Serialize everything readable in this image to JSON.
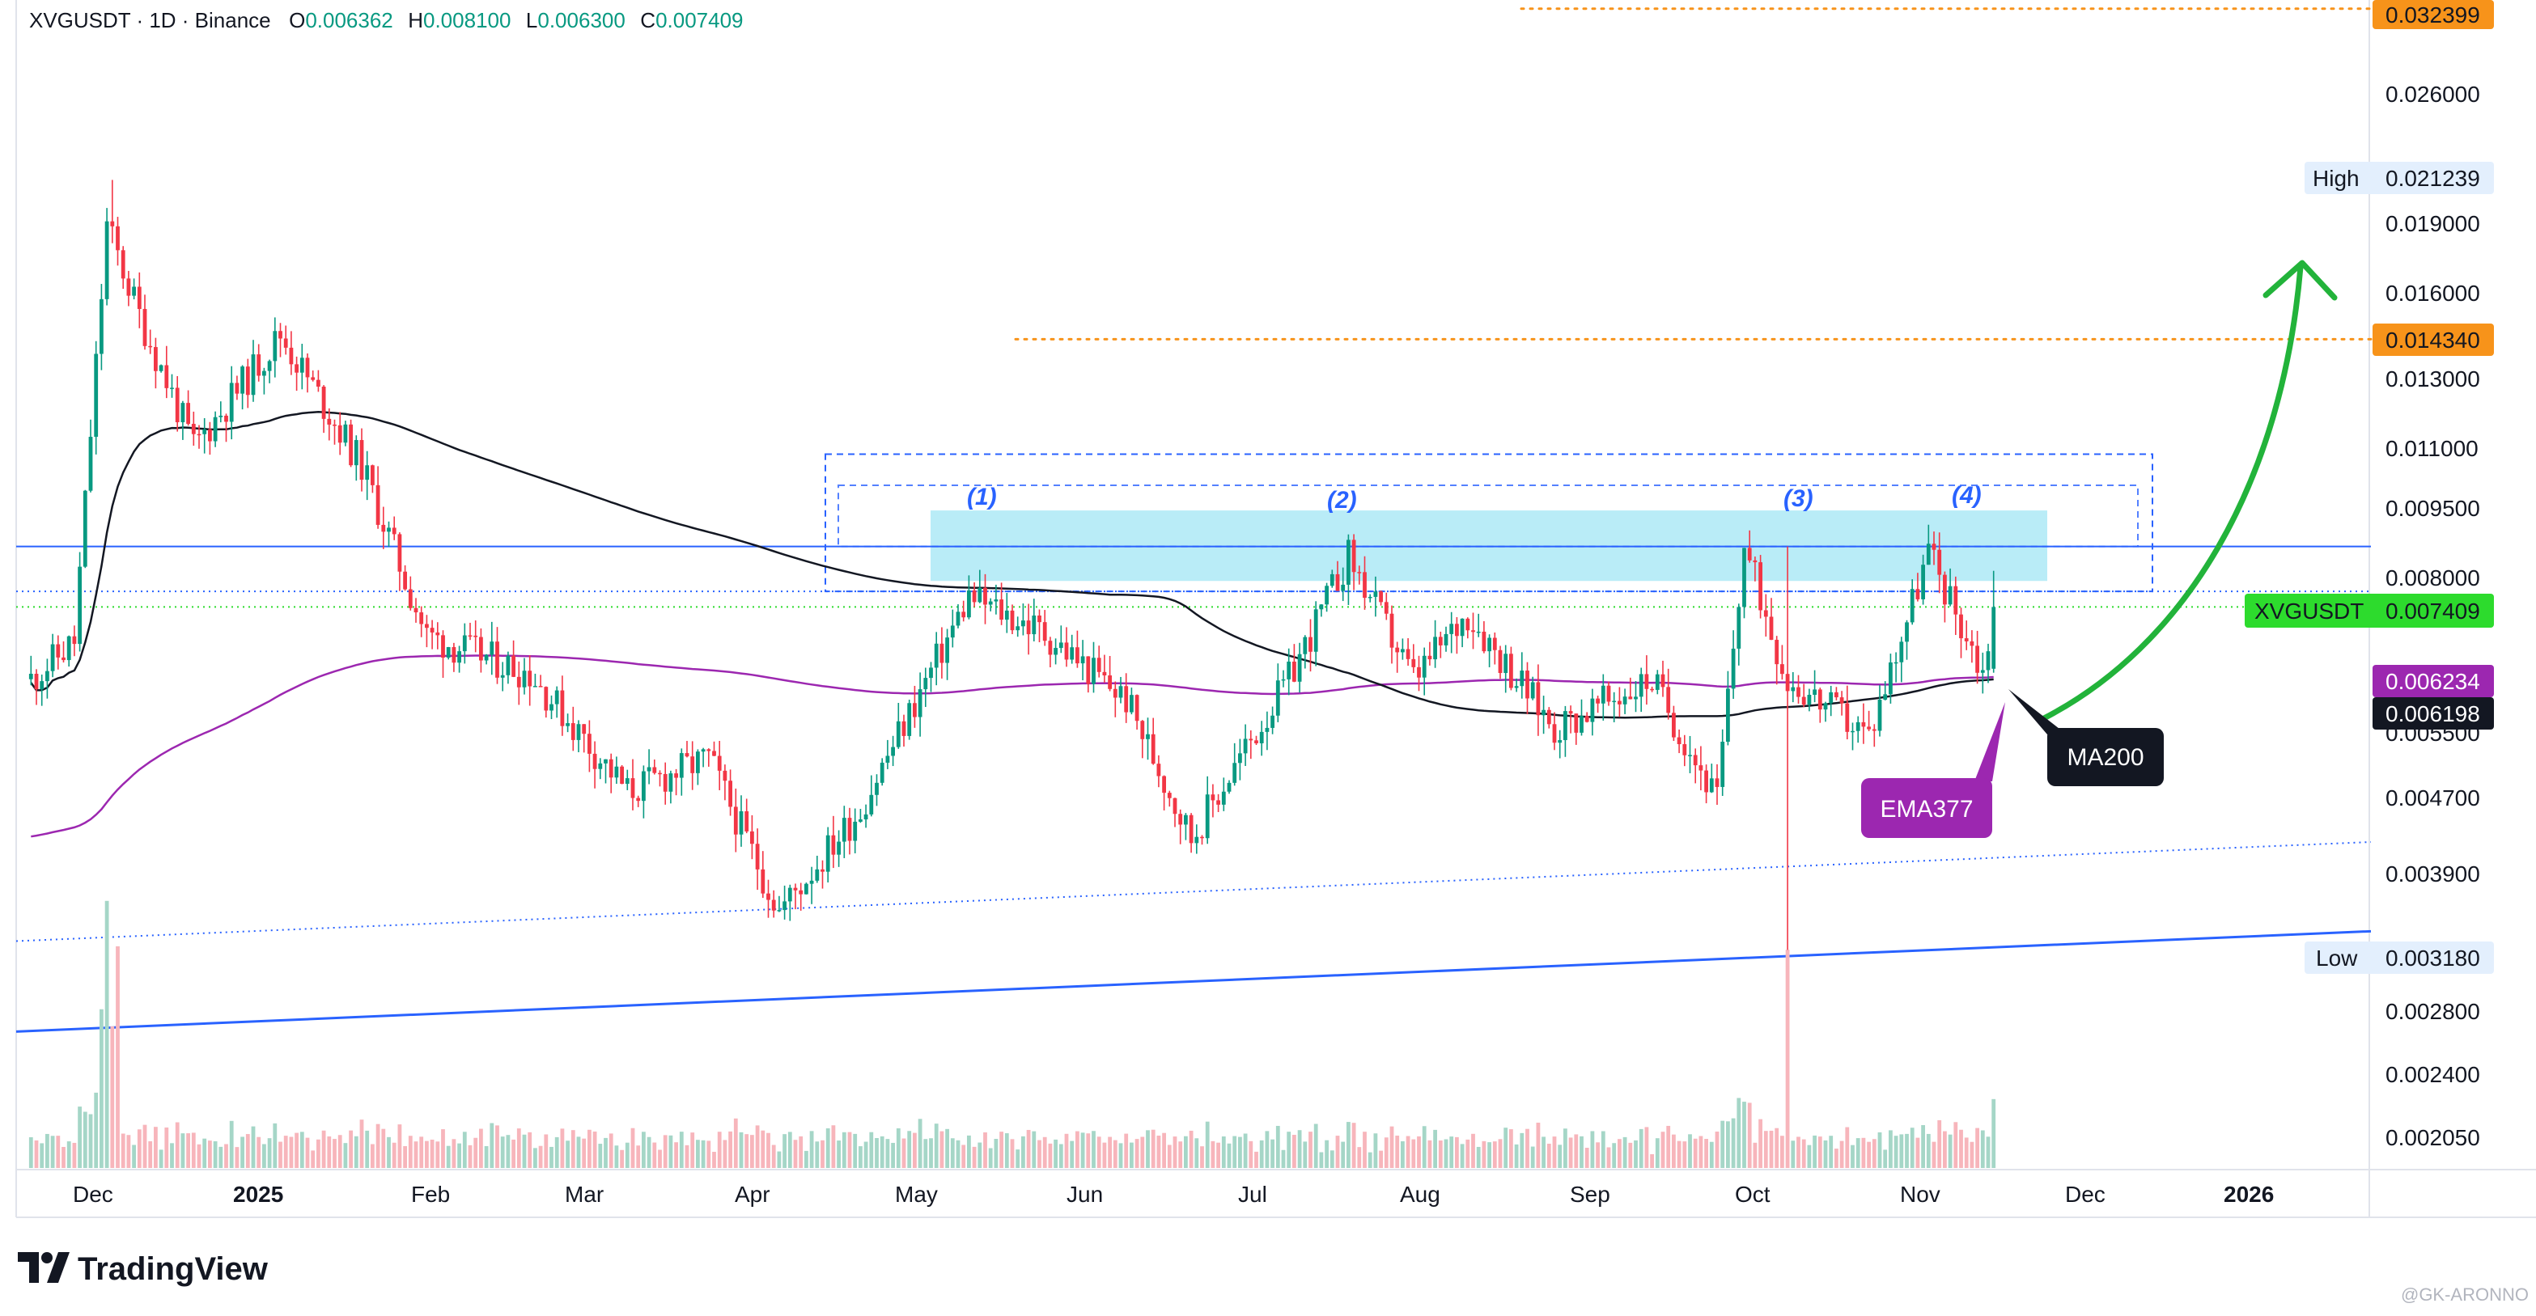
{
  "header": {
    "symbol": "XVGUSDT · 1D · Binance",
    "o_label": "O",
    "o_value": "0.006362",
    "h_label": "H",
    "h_value": "0.008100",
    "l_label": "L",
    "l_value": "0.006300",
    "c_label": "C",
    "c_value": "0.007409"
  },
  "price_axis": {
    "ticks": [
      "0.026000",
      "0.019000",
      "0.016000",
      "0.013000",
      "0.011000",
      "0.009500",
      "0.008000",
      "0.005500",
      "0.004700",
      "0.003900",
      "0.002800",
      "0.002400",
      "0.002050"
    ]
  },
  "price_labels": {
    "top_target": "0.032399",
    "high_title": "High",
    "high_value": "0.021239",
    "mid_target": "0.014340",
    "symbol_tag": "XVGUSDT",
    "last_price": "0.007409",
    "ema_value": "0.006234",
    "ma_value": "0.006198",
    "low_title": "Low",
    "low_value": "0.003180"
  },
  "time_axis": {
    "ticks": [
      "Dec",
      "2025",
      "Feb",
      "Mar",
      "Apr",
      "May",
      "Jun",
      "Jul",
      "Aug",
      "Sep",
      "Oct",
      "Nov",
      "Dec",
      "2026"
    ]
  },
  "annotations": {
    "wave_1": "(1)",
    "wave_2": "(2)",
    "wave_3": "(3)",
    "wave_4": "(4)",
    "ma_callout": "MA200",
    "ema_callout": "EMA377"
  },
  "brand": {
    "name": "TradingView",
    "watermark": "@GK-ARONNO"
  },
  "colors": {
    "up": "#089981",
    "down": "#f23645",
    "ema": "#9c27b0",
    "ma": "#131722",
    "orange": "#f7931a",
    "green_arrow": "#22b33a",
    "trend_blue": "#2962ff",
    "zone": "#7fdcf0"
  },
  "chart_data": {
    "type": "candlestick",
    "symbol": "XVGUSDT",
    "interval": "1D",
    "exchange": "Binance",
    "y_scale": "log",
    "ylim": [
      0.00185,
      0.0331
    ],
    "x_range": [
      "2024-11-20",
      "2026-01-20"
    ],
    "last_bar": {
      "date": "2025-11-17",
      "open": 0.006362,
      "high": 0.0081,
      "low": 0.0063,
      "close": 0.007409
    },
    "period_high": 0.021239,
    "period_low": 0.00318,
    "series": [
      {
        "name": "MA200",
        "last_value": 0.006198
      },
      {
        "name": "EMA377",
        "last_value": 0.006234
      }
    ],
    "horizontal_levels": [
      0.032399,
      0.01434
    ],
    "closes_approx": [
      {
        "date": "2024-11-20",
        "close": 0.0062
      },
      {
        "date": "2024-11-28",
        "close": 0.0068
      },
      {
        "date": "2024-12-04",
        "close": 0.019
      },
      {
        "date": "2024-12-10",
        "close": 0.0152
      },
      {
        "date": "2024-12-20",
        "close": 0.011
      },
      {
        "date": "2025-01-05",
        "close": 0.0145
      },
      {
        "date": "2025-01-20",
        "close": 0.0105
      },
      {
        "date": "2025-02-01",
        "close": 0.0069
      },
      {
        "date": "2025-02-20",
        "close": 0.0063
      },
      {
        "date": "2025-03-10",
        "close": 0.0047
      },
      {
        "date": "2025-03-25",
        "close": 0.0051
      },
      {
        "date": "2025-04-07",
        "close": 0.0035
      },
      {
        "date": "2025-04-22",
        "close": 0.0045
      },
      {
        "date": "2025-05-12",
        "close": 0.0076
      },
      {
        "date": "2025-05-25",
        "close": 0.007
      },
      {
        "date": "2025-06-10",
        "close": 0.0059
      },
      {
        "date": "2025-06-22",
        "close": 0.0042
      },
      {
        "date": "2025-07-10",
        "close": 0.0062
      },
      {
        "date": "2025-07-21",
        "close": 0.0084
      },
      {
        "date": "2025-08-02",
        "close": 0.0062
      },
      {
        "date": "2025-08-12",
        "close": 0.0073
      },
      {
        "date": "2025-08-28",
        "close": 0.0055
      },
      {
        "date": "2025-09-15",
        "close": 0.0062
      },
      {
        "date": "2025-09-27",
        "close": 0.0046
      },
      {
        "date": "2025-10-02",
        "close": 0.0086
      },
      {
        "date": "2025-10-10",
        "close": 0.0062
      },
      {
        "date": "2025-10-25",
        "close": 0.0054
      },
      {
        "date": "2025-11-05",
        "close": 0.0085
      },
      {
        "date": "2025-11-15",
        "close": 0.0063
      },
      {
        "date": "2025-11-17",
        "close": 0.007409
      }
    ]
  }
}
